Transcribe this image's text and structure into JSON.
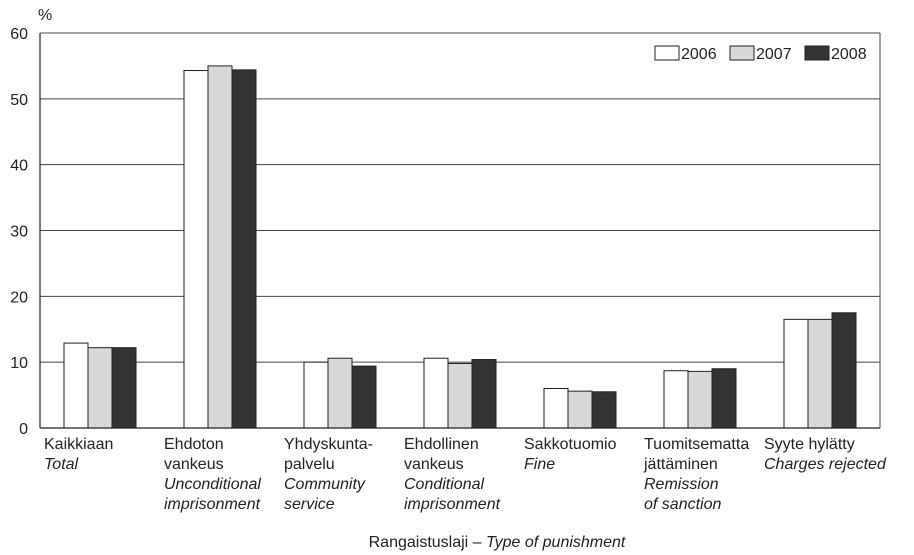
{
  "chart_data": {
    "type": "bar",
    "ylabel": "%",
    "ylim": [
      0,
      60
    ],
    "yticks": [
      0,
      10,
      20,
      30,
      40,
      50,
      60
    ],
    "grid": true,
    "legend_position": "top-right",
    "xlabel": {
      "fi": "Rangaistuslaji",
      "separator": " – ",
      "en": "Type of punishment"
    },
    "categories": [
      {
        "fi": [
          "Kaikkiaan"
        ],
        "en": [
          "Total"
        ]
      },
      {
        "fi": [
          "Ehdoton",
          "vankeus"
        ],
        "en": [
          "Unconditional",
          "imprisonment"
        ]
      },
      {
        "fi": [
          "Yhdyskunta-",
          "palvelu"
        ],
        "en": [
          "Community",
          "service"
        ]
      },
      {
        "fi": [
          "Ehdollinen",
          "vankeus"
        ],
        "en": [
          "Conditional",
          "imprisonment"
        ]
      },
      {
        "fi": [
          "Sakkotuomio"
        ],
        "en": [
          "Fine"
        ]
      },
      {
        "fi": [
          "Tuomitsematta",
          "jättäminen"
        ],
        "en": [
          "Remission",
          "of sanction"
        ]
      },
      {
        "fi": [
          "Syyte hylätty"
        ],
        "en": [
          "Charges rejected"
        ]
      }
    ],
    "series": [
      {
        "name": "2006",
        "color": "#ffffff",
        "values": [
          12.9,
          54.3,
          10.0,
          10.6,
          6.0,
          8.7,
          16.5
        ]
      },
      {
        "name": "2007",
        "color": "#d8d8d8",
        "values": [
          12.2,
          55.0,
          10.6,
          9.8,
          5.6,
          8.6,
          16.5
        ]
      },
      {
        "name": "2008",
        "color": "#333333",
        "values": [
          12.2,
          54.4,
          9.4,
          10.4,
          5.5,
          9.0,
          17.5
        ]
      }
    ]
  }
}
